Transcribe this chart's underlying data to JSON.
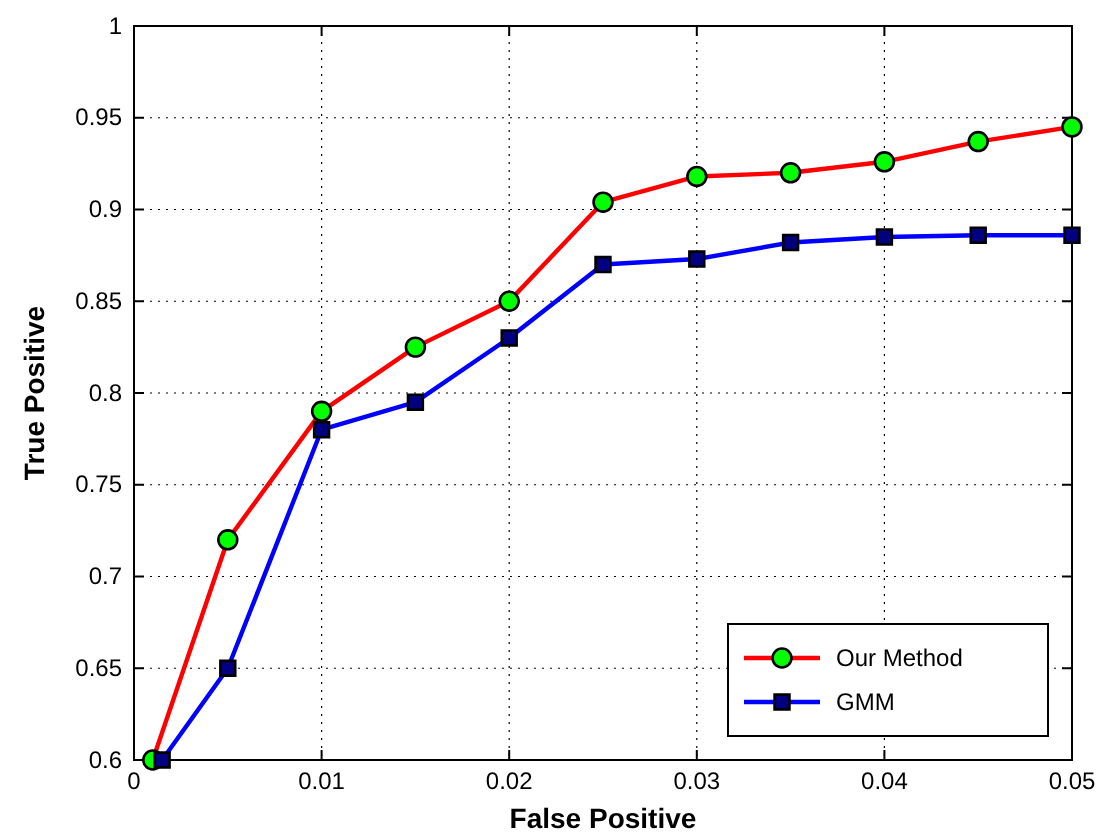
{
  "chart_data": {
    "type": "line",
    "xlabel": "False Positive",
    "ylabel": "True Positive",
    "xlim": [
      0,
      0.05
    ],
    "xticks": [
      0,
      0.01,
      0.02,
      0.03,
      0.04,
      0.05
    ],
    "ylim": [
      0.6,
      1
    ],
    "yticks": [
      0.6,
      0.65,
      0.7,
      0.75,
      0.8,
      0.85,
      0.9,
      0.95,
      1
    ],
    "grid": true,
    "legend": "bottom right",
    "line_style": "solid",
    "series": [
      {
        "name": "Our Method",
        "color": "#ff0000",
        "marker": "circle",
        "x": [
          0.001,
          0.005,
          0.01,
          0.015,
          0.02,
          0.025,
          0.03,
          0.035,
          0.04,
          0.045,
          0.05
        ],
        "values": [
          0.6,
          0.72,
          0.79,
          0.825,
          0.85,
          0.904,
          0.918,
          0.92,
          0.926,
          0.937,
          0.945
        ]
      },
      {
        "name": "GMM",
        "color": "#0000ff",
        "marker": "square",
        "x": [
          0.0015,
          0.005,
          0.01,
          0.015,
          0.02,
          0.025,
          0.03,
          0.035,
          0.04,
          0.045,
          0.05
        ],
        "values": [
          0.6,
          0.65,
          0.78,
          0.795,
          0.83,
          0.87,
          0.873,
          0.882,
          0.885,
          0.886,
          0.886
        ]
      }
    ]
  }
}
